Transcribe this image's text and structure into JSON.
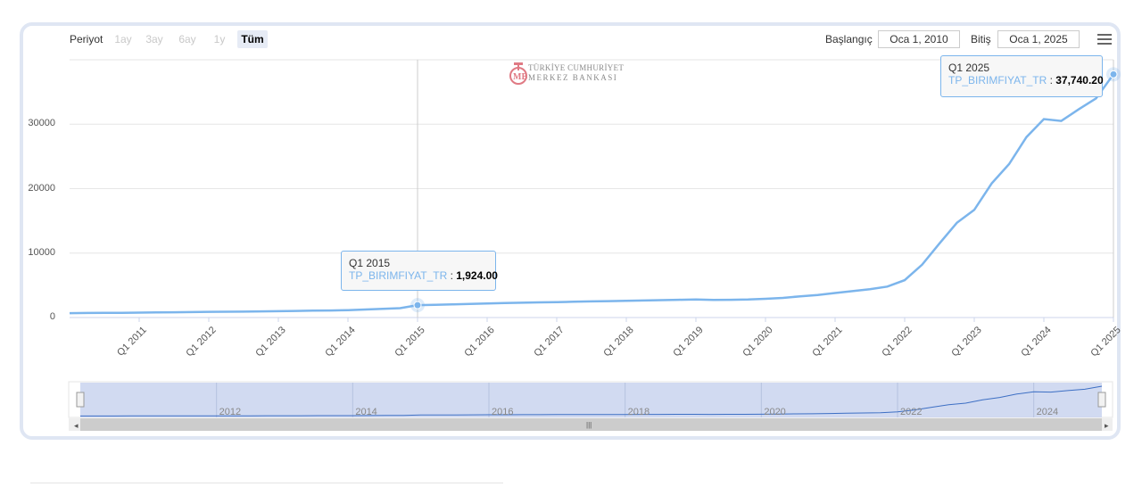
{
  "toolbar": {
    "period_label": "Periyot",
    "ranges": [
      {
        "label": "1ay",
        "active": false
      },
      {
        "label": "3ay",
        "active": false
      },
      {
        "label": "6ay",
        "active": false
      },
      {
        "label": "1y",
        "active": false
      },
      {
        "label": "Tüm",
        "active": true
      }
    ],
    "start_label": "Başlangıç",
    "start_value": "Oca 1, 2010",
    "end_label": "Bitiş",
    "end_value": "Oca 1, 2025"
  },
  "logo": {
    "line1": "TÜRKİYE CUMHURİYET",
    "line2": "MERKEZ BANKASI"
  },
  "tooltips": [
    {
      "title": "Q1 2015",
      "series": "TP_BIRIMFIYAT_TR",
      "value": "1,924.00"
    },
    {
      "title": "Q1 2025",
      "series": "TP_BIRIMFIYAT_TR",
      "value": "37,740.20"
    }
  ],
  "colors": {
    "series": "#7cb5ec",
    "navigator_fill": "#c9d4ee",
    "frame": "#dfe6f3"
  },
  "chart_data": {
    "type": "line",
    "title": "",
    "xlabel": "",
    "ylabel": "",
    "ylim": [
      0,
      40000
    ],
    "yticks": [
      0,
      10000,
      20000,
      30000
    ],
    "xtick_labels": [
      "Q1 2011",
      "Q1 2012",
      "Q1 2013",
      "Q1 2014",
      "Q1 2015",
      "Q1 2016",
      "Q1 2017",
      "Q1 2018",
      "Q1 2019",
      "Q1 2020",
      "Q1 2021",
      "Q1 2022",
      "Q1 2023",
      "Q1 2024",
      "Q1 2025"
    ],
    "navigator_labels": [
      "2012",
      "2014",
      "2016",
      "2018",
      "2020",
      "2022",
      "2024"
    ],
    "grid": true,
    "series": [
      {
        "name": "TP_BIRIMFIYAT_TR",
        "x": [
          "Q1 2010",
          "Q2 2010",
          "Q3 2010",
          "Q4 2010",
          "Q1 2011",
          "Q2 2011",
          "Q3 2011",
          "Q4 2011",
          "Q1 2012",
          "Q2 2012",
          "Q3 2012",
          "Q4 2012",
          "Q1 2013",
          "Q2 2013",
          "Q3 2013",
          "Q4 2013",
          "Q1 2014",
          "Q2 2014",
          "Q3 2014",
          "Q4 2014",
          "Q1 2015",
          "Q2 2015",
          "Q3 2015",
          "Q4 2015",
          "Q1 2016",
          "Q2 2016",
          "Q3 2016",
          "Q4 2016",
          "Q1 2017",
          "Q2 2017",
          "Q3 2017",
          "Q4 2017",
          "Q1 2018",
          "Q2 2018",
          "Q3 2018",
          "Q4 2018",
          "Q1 2019",
          "Q2 2019",
          "Q3 2019",
          "Q4 2019",
          "Q1 2020",
          "Q2 2020",
          "Q3 2020",
          "Q4 2020",
          "Q1 2021",
          "Q2 2021",
          "Q3 2021",
          "Q4 2021",
          "Q1 2022",
          "Q2 2022",
          "Q3 2022",
          "Q4 2022",
          "Q1 2023",
          "Q2 2023",
          "Q3 2023",
          "Q4 2023",
          "Q1 2024",
          "Q2 2024",
          "Q3 2024",
          "Q4 2024",
          "Q1 2025"
        ],
        "values": [
          680,
          700,
          720,
          740,
          760,
          790,
          820,
          850,
          880,
          900,
          920,
          950,
          980,
          1020,
          1060,
          1100,
          1150,
          1250,
          1350,
          1450,
          1924,
          1980,
          2040,
          2110,
          2180,
          2250,
          2300,
          2350,
          2400,
          2450,
          2500,
          2550,
          2600,
          2650,
          2700,
          2750,
          2800,
          2720,
          2750,
          2800,
          2900,
          3050,
          3300,
          3500,
          3800,
          4100,
          4400,
          4800,
          5800,
          8200,
          11500,
          14700,
          16700,
          20800,
          23800,
          28000,
          30800,
          30500,
          32300,
          34000,
          37740.2
        ]
      }
    ]
  }
}
